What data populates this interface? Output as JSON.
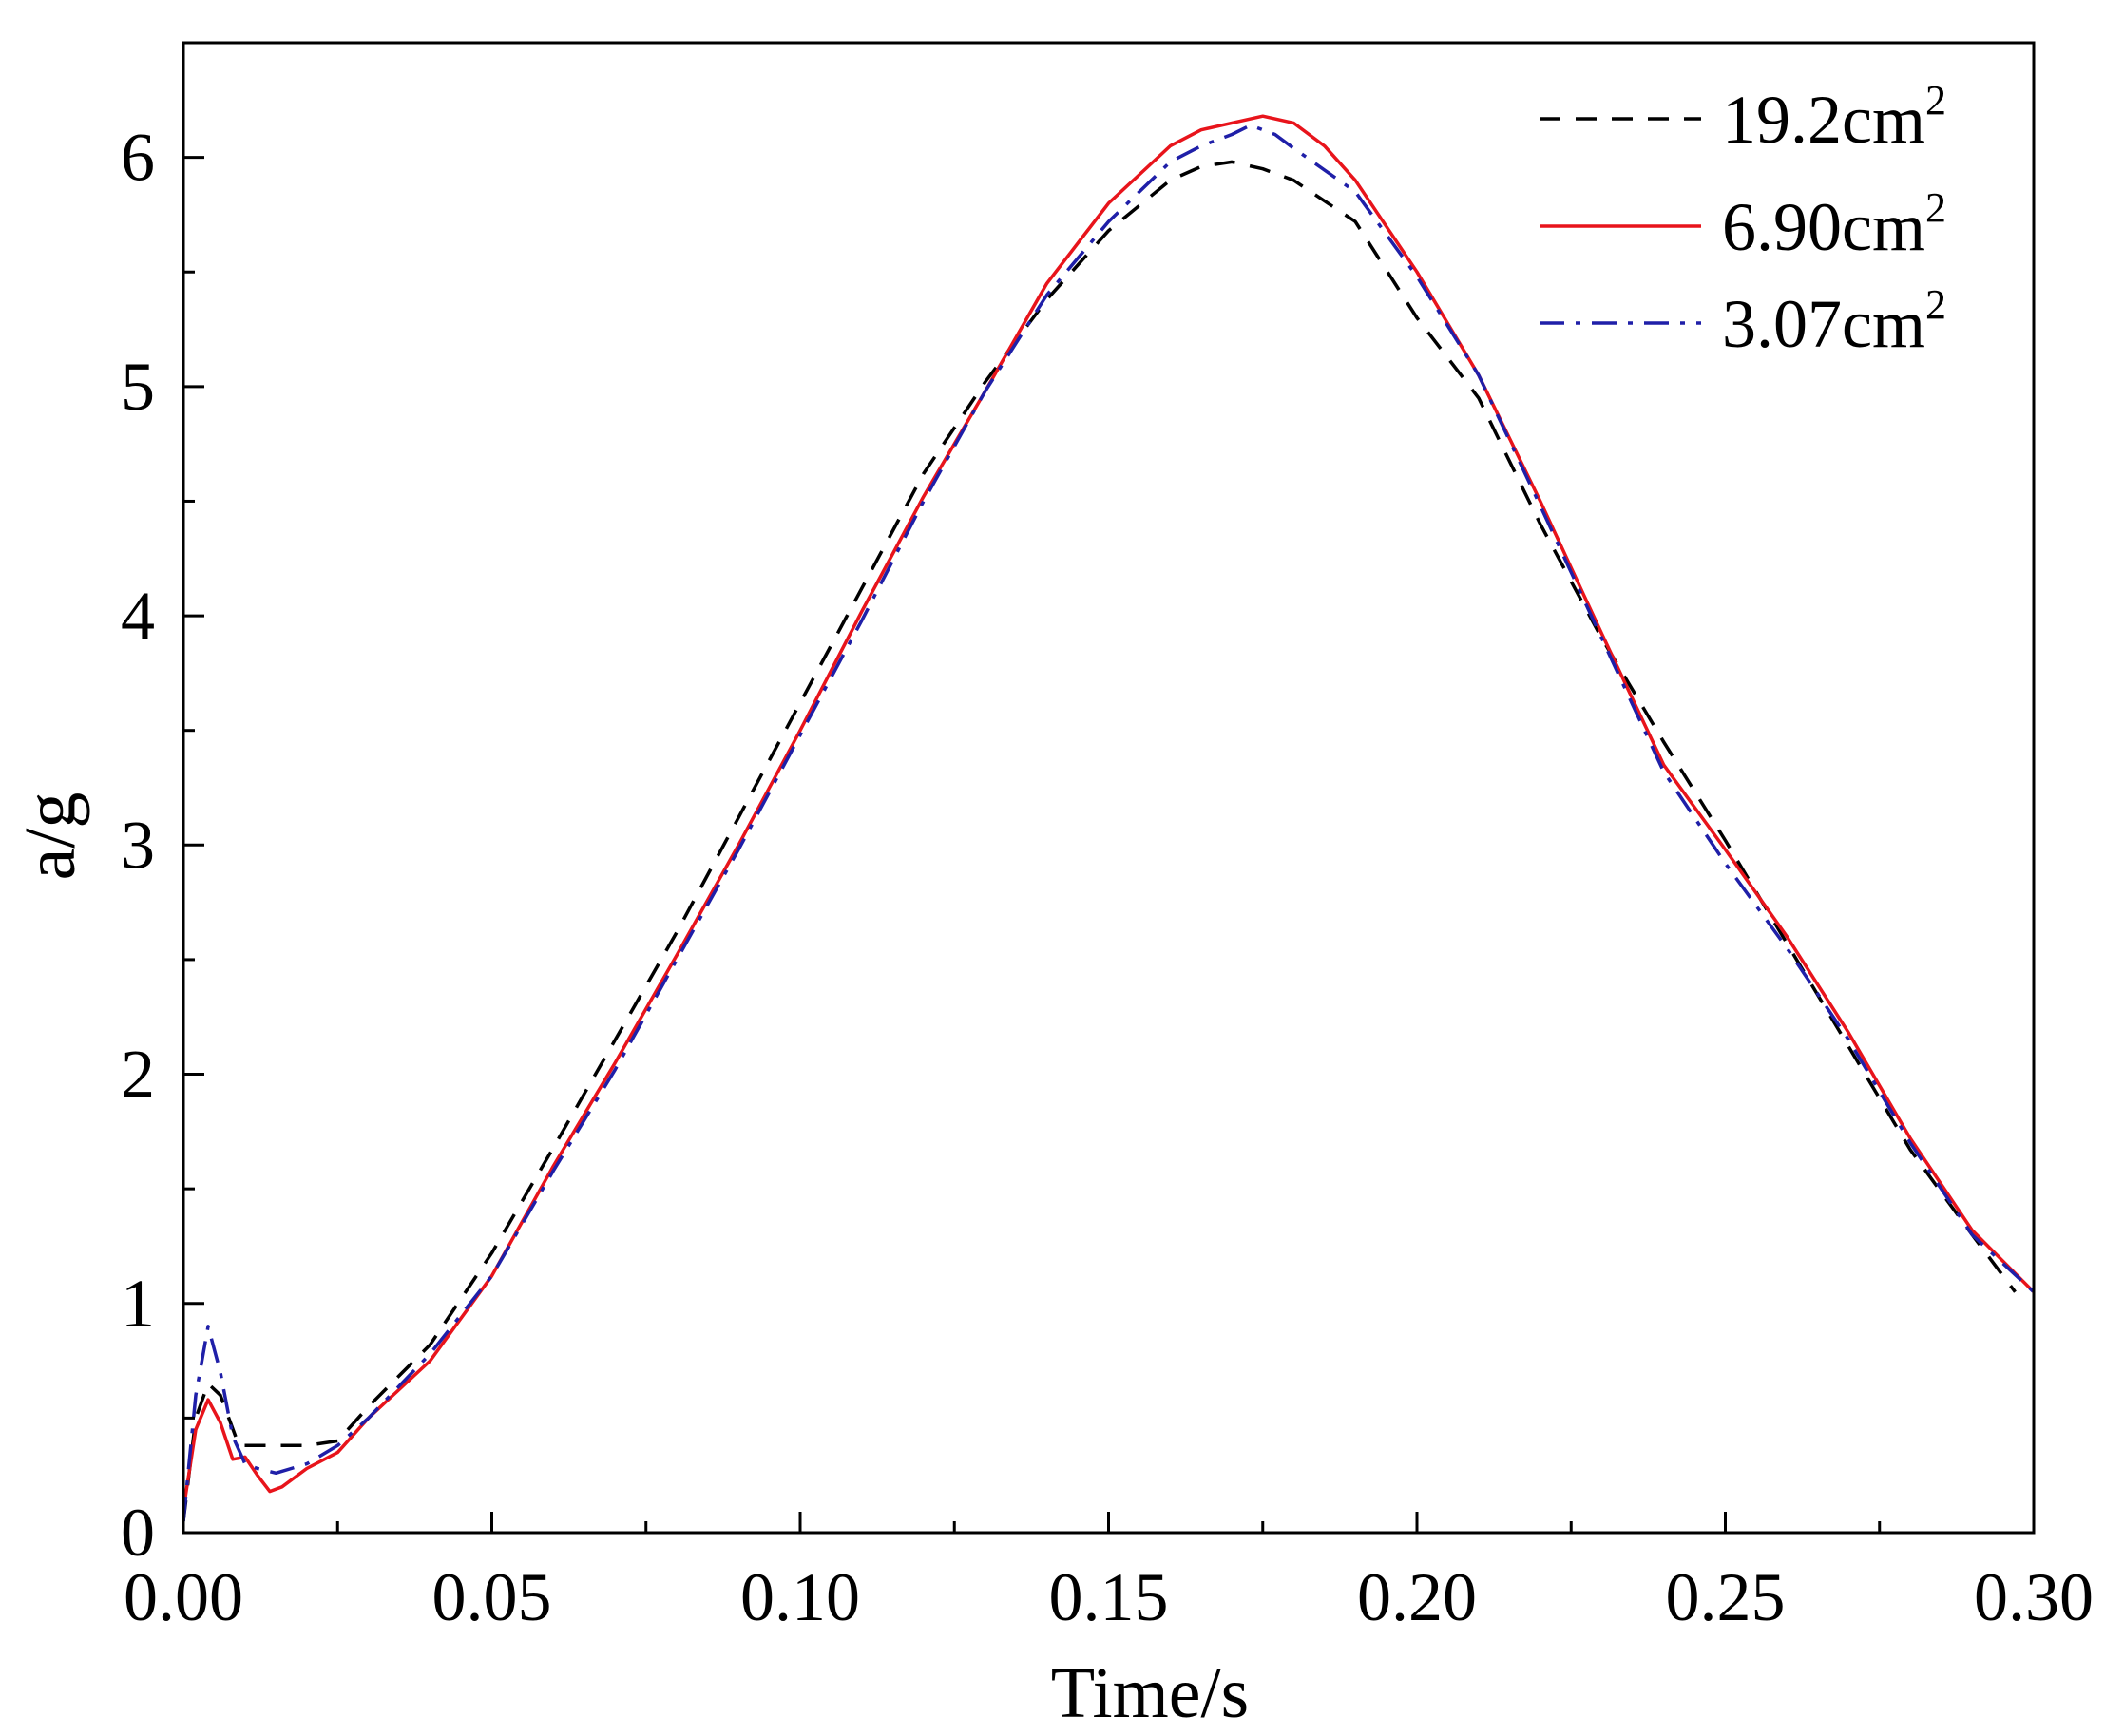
{
  "chart_data": {
    "type": "line",
    "title": "",
    "xlabel": "Time/s",
    "ylabel": "a/g",
    "xlim": [
      0,
      0.3
    ],
    "ylim": [
      0,
      6.5
    ],
    "x_ticks": [
      0.0,
      0.05,
      0.1,
      0.15,
      0.2,
      0.25,
      0.3
    ],
    "x_tick_labels": [
      "0.00",
      "0.05",
      "0.10",
      "0.15",
      "0.20",
      "0.25",
      "0.30"
    ],
    "y_ticks": [
      0,
      1,
      2,
      3,
      4,
      5,
      6
    ],
    "y_tick_labels": [
      "0",
      "1",
      "2",
      "3",
      "4",
      "5",
      "6"
    ],
    "grid": false,
    "legend_position": "top-right",
    "series": [
      {
        "name": "19.2cm²",
        "label_main": "19.2cm",
        "label_sup": "2",
        "color": "#000000",
        "style": "dashed",
        "points": [
          [
            0,
            0.05
          ],
          [
            0.002,
            0.5
          ],
          [
            0.004,
            0.65
          ],
          [
            0.006,
            0.6
          ],
          [
            0.009,
            0.38
          ],
          [
            0.012,
            0.38
          ],
          [
            0.02,
            0.38
          ],
          [
            0.025,
            0.4
          ],
          [
            0.03,
            0.55
          ],
          [
            0.04,
            0.82
          ],
          [
            0.05,
            1.22
          ],
          [
            0.06,
            1.68
          ],
          [
            0.07,
            2.15
          ],
          [
            0.08,
            2.62
          ],
          [
            0.09,
            3.12
          ],
          [
            0.1,
            3.62
          ],
          [
            0.11,
            4.12
          ],
          [
            0.12,
            4.62
          ],
          [
            0.13,
            5.02
          ],
          [
            0.14,
            5.38
          ],
          [
            0.15,
            5.68
          ],
          [
            0.16,
            5.9
          ],
          [
            0.165,
            5.96
          ],
          [
            0.17,
            5.98
          ],
          [
            0.175,
            5.95
          ],
          [
            0.18,
            5.9
          ],
          [
            0.19,
            5.72
          ],
          [
            0.2,
            5.3
          ],
          [
            0.21,
            4.95
          ],
          [
            0.22,
            4.4
          ],
          [
            0.23,
            3.9
          ],
          [
            0.24,
            3.45
          ],
          [
            0.25,
            3.02
          ],
          [
            0.26,
            2.57
          ],
          [
            0.27,
            2.12
          ],
          [
            0.28,
            1.67
          ],
          [
            0.29,
            1.3
          ],
          [
            0.297,
            1.05
          ]
        ]
      },
      {
        "name": "6.90cm²",
        "label_main": "6.90cm",
        "label_sup": "2",
        "color": "#e8141b",
        "style": "solid",
        "points": [
          [
            0,
            0.1
          ],
          [
            0.002,
            0.45
          ],
          [
            0.004,
            0.58
          ],
          [
            0.006,
            0.48
          ],
          [
            0.008,
            0.32
          ],
          [
            0.01,
            0.33
          ],
          [
            0.012,
            0.25
          ],
          [
            0.014,
            0.18
          ],
          [
            0.016,
            0.2
          ],
          [
            0.02,
            0.28
          ],
          [
            0.025,
            0.35
          ],
          [
            0.03,
            0.5
          ],
          [
            0.04,
            0.75
          ],
          [
            0.05,
            1.12
          ],
          [
            0.06,
            1.6
          ],
          [
            0.07,
            2.05
          ],
          [
            0.08,
            2.52
          ],
          [
            0.09,
            3.0
          ],
          [
            0.1,
            3.5
          ],
          [
            0.11,
            4.02
          ],
          [
            0.12,
            4.52
          ],
          [
            0.13,
            4.98
          ],
          [
            0.14,
            5.45
          ],
          [
            0.15,
            5.8
          ],
          [
            0.16,
            6.05
          ],
          [
            0.165,
            6.12
          ],
          [
            0.17,
            6.15
          ],
          [
            0.175,
            6.18
          ],
          [
            0.18,
            6.15
          ],
          [
            0.185,
            6.05
          ],
          [
            0.19,
            5.9
          ],
          [
            0.2,
            5.5
          ],
          [
            0.21,
            5.05
          ],
          [
            0.22,
            4.5
          ],
          [
            0.23,
            3.92
          ],
          [
            0.24,
            3.35
          ],
          [
            0.25,
            2.98
          ],
          [
            0.26,
            2.6
          ],
          [
            0.27,
            2.18
          ],
          [
            0.28,
            1.72
          ],
          [
            0.29,
            1.32
          ],
          [
            0.3,
            1.05
          ]
        ]
      },
      {
        "name": "3.07cm²",
        "label_main": "3.07cm",
        "label_sup": "2",
        "color": "#1f1fa8",
        "style": "dashdot",
        "points": [
          [
            0,
            0.05
          ],
          [
            0.002,
            0.6
          ],
          [
            0.004,
            0.9
          ],
          [
            0.006,
            0.7
          ],
          [
            0.008,
            0.42
          ],
          [
            0.01,
            0.3
          ],
          [
            0.012,
            0.28
          ],
          [
            0.015,
            0.26
          ],
          [
            0.02,
            0.3
          ],
          [
            0.025,
            0.38
          ],
          [
            0.03,
            0.5
          ],
          [
            0.04,
            0.78
          ],
          [
            0.05,
            1.12
          ],
          [
            0.06,
            1.58
          ],
          [
            0.07,
            2.02
          ],
          [
            0.08,
            2.5
          ],
          [
            0.09,
            2.98
          ],
          [
            0.1,
            3.48
          ],
          [
            0.11,
            3.98
          ],
          [
            0.12,
            4.5
          ],
          [
            0.13,
            4.98
          ],
          [
            0.14,
            5.4
          ],
          [
            0.15,
            5.72
          ],
          [
            0.16,
            5.98
          ],
          [
            0.165,
            6.05
          ],
          [
            0.17,
            6.1
          ],
          [
            0.173,
            6.14
          ],
          [
            0.177,
            6.1
          ],
          [
            0.18,
            6.04
          ],
          [
            0.19,
            5.85
          ],
          [
            0.2,
            5.48
          ],
          [
            0.21,
            5.05
          ],
          [
            0.22,
            4.48
          ],
          [
            0.23,
            3.9
          ],
          [
            0.24,
            3.32
          ],
          [
            0.25,
            2.92
          ],
          [
            0.26,
            2.55
          ],
          [
            0.27,
            2.15
          ],
          [
            0.28,
            1.7
          ],
          [
            0.29,
            1.3
          ],
          [
            0.3,
            1.05
          ]
        ]
      }
    ]
  }
}
